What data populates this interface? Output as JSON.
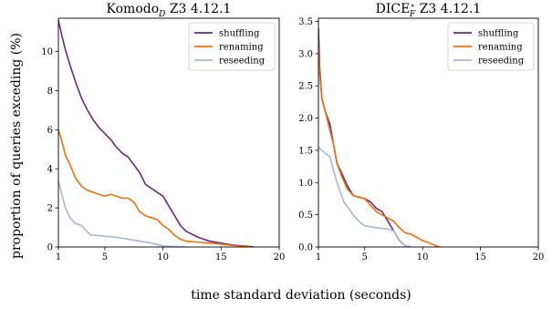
{
  "figure": {
    "ylabel": "proportion of queries exceding (%)",
    "xlabel": "time standard deviation (seconds)"
  },
  "chart_data": [
    {
      "type": "line",
      "title": "Komodo_D Z3 4.12.1",
      "title_main": "Komodo",
      "title_sub": "D",
      "title_rest": " Z3 4.12.1",
      "xlim": [
        1,
        20
      ],
      "ylim": [
        0,
        11.7
      ],
      "xticks": [
        1,
        5,
        10,
        15,
        20
      ],
      "yticks": [
        0,
        2,
        4,
        6,
        8,
        10
      ],
      "grid": false,
      "legend_position": "top-right",
      "series": [
        {
          "name": "shuffling",
          "color": "#6a2c7a",
          "points": [
            [
              1,
              11.6
            ],
            [
              1.3,
              10.8
            ],
            [
              1.6,
              10.1
            ],
            [
              2,
              9.3
            ],
            [
              2.5,
              8.4
            ],
            [
              3,
              7.6
            ],
            [
              3.5,
              7.0
            ],
            [
              4,
              6.5
            ],
            [
              4.5,
              6.1
            ],
            [
              5,
              5.8
            ],
            [
              5.5,
              5.5
            ],
            [
              6,
              5.1
            ],
            [
              6.5,
              4.8
            ],
            [
              7,
              4.6
            ],
            [
              7.5,
              4.2
            ],
            [
              8,
              3.8
            ],
            [
              8.5,
              3.2
            ],
            [
              9,
              3.0
            ],
            [
              9.5,
              2.8
            ],
            [
              10,
              2.6
            ],
            [
              10.5,
              2.1
            ],
            [
              11,
              1.6
            ],
            [
              11.5,
              1.1
            ],
            [
              12,
              0.8
            ],
            [
              13,
              0.5
            ],
            [
              14,
              0.3
            ],
            [
              15,
              0.2
            ],
            [
              16,
              0.1
            ],
            [
              17,
              0.05
            ],
            [
              17.8,
              0
            ]
          ]
        },
        {
          "name": "renaming",
          "color": "#f0700f",
          "points": [
            [
              1,
              6.0
            ],
            [
              1.3,
              5.4
            ],
            [
              1.6,
              4.7
            ],
            [
              2,
              4.2
            ],
            [
              2.5,
              3.5
            ],
            [
              3,
              3.1
            ],
            [
              3.5,
              2.9
            ],
            [
              4,
              2.8
            ],
            [
              4.5,
              2.7
            ],
            [
              5,
              2.6
            ],
            [
              5.5,
              2.7
            ],
            [
              6,
              2.6
            ],
            [
              6.5,
              2.5
            ],
            [
              7,
              2.5
            ],
            [
              7.5,
              2.3
            ],
            [
              8,
              1.8
            ],
            [
              8.5,
              1.6
            ],
            [
              9,
              1.5
            ],
            [
              9.5,
              1.4
            ],
            [
              10,
              1.1
            ],
            [
              10.5,
              0.9
            ],
            [
              11,
              0.6
            ],
            [
              11.5,
              0.4
            ],
            [
              12,
              0.3
            ],
            [
              13,
              0.25
            ],
            [
              14,
              0.2
            ],
            [
              15,
              0.15
            ],
            [
              16,
              0.08
            ],
            [
              17.5,
              0
            ]
          ]
        },
        {
          "name": "reseeding",
          "color": "#a4b7d6",
          "points": [
            [
              1,
              3.4
            ],
            [
              1.3,
              2.7
            ],
            [
              1.6,
              2.0
            ],
            [
              2,
              1.5
            ],
            [
              2.5,
              1.2
            ],
            [
              3,
              1.1
            ],
            [
              3.3,
              0.9
            ],
            [
              3.8,
              0.6
            ],
            [
              4.3,
              0.6
            ],
            [
              5,
              0.55
            ],
            [
              6,
              0.5
            ],
            [
              7,
              0.4
            ],
            [
              8,
              0.3
            ],
            [
              9,
              0.2
            ],
            [
              10,
              0.05
            ],
            [
              11,
              0.02
            ],
            [
              12,
              0
            ]
          ]
        }
      ]
    },
    {
      "type": "line",
      "title": "DICE*_F Z3 4.12.1",
      "title_main": "DICE",
      "title_sup": "⋆",
      "title_sub": "F",
      "title_rest": " Z3 4.12.1",
      "xlim": [
        1,
        20
      ],
      "ylim": [
        0,
        3.55
      ],
      "xticks": [
        1,
        5,
        10,
        15,
        20
      ],
      "yticks": [
        0.0,
        0.5,
        1.0,
        1.5,
        2.0,
        2.5,
        3.0,
        3.5
      ],
      "grid": false,
      "legend_position": "top-right",
      "series": [
        {
          "name": "shuffling",
          "color": "#6a2c7a",
          "points": [
            [
              1,
              3.4
            ],
            [
              1.1,
              2.8
            ],
            [
              1.3,
              2.3
            ],
            [
              1.6,
              2.1
            ],
            [
              2,
              1.9
            ],
            [
              2.3,
              1.6
            ],
            [
              2.6,
              1.3
            ],
            [
              3,
              1.15
            ],
            [
              3.5,
              0.95
            ],
            [
              4,
              0.8
            ],
            [
              5,
              0.75
            ],
            [
              5.5,
              0.7
            ],
            [
              6,
              0.6
            ],
            [
              6.5,
              0.55
            ],
            [
              7,
              0.4
            ],
            [
              7.5,
              0.25
            ],
            [
              8,
              0.1
            ],
            [
              8.5,
              0.02
            ],
            [
              9,
              0
            ]
          ]
        },
        {
          "name": "renaming",
          "color": "#f0700f",
          "points": [
            [
              1,
              3.1
            ],
            [
              1.1,
              2.7
            ],
            [
              1.3,
              2.3
            ],
            [
              1.6,
              2.1
            ],
            [
              2,
              1.8
            ],
            [
              2.3,
              1.6
            ],
            [
              2.6,
              1.3
            ],
            [
              3,
              1.1
            ],
            [
              3.5,
              0.9
            ],
            [
              4,
              0.8
            ],
            [
              5,
              0.75
            ],
            [
              5.5,
              0.65
            ],
            [
              6,
              0.55
            ],
            [
              6.5,
              0.5
            ],
            [
              7,
              0.45
            ],
            [
              7.5,
              0.4
            ],
            [
              8,
              0.3
            ],
            [
              8.5,
              0.22
            ],
            [
              9,
              0.2
            ],
            [
              10,
              0.1
            ],
            [
              10.5,
              0.07
            ],
            [
              11,
              0.03
            ],
            [
              11.5,
              0
            ]
          ]
        },
        {
          "name": "reseeding",
          "color": "#a4b7d6",
          "points": [
            [
              1,
              1.55
            ],
            [
              1.3,
              1.5
            ],
            [
              1.6,
              1.45
            ],
            [
              2,
              1.4
            ],
            [
              2.3,
              1.2
            ],
            [
              2.6,
              1.0
            ],
            [
              2.9,
              0.85
            ],
            [
              3.2,
              0.7
            ],
            [
              3.6,
              0.6
            ],
            [
              4,
              0.5
            ],
            [
              4.5,
              0.4
            ],
            [
              5,
              0.33
            ],
            [
              6,
              0.3
            ],
            [
              7,
              0.28
            ],
            [
              7.5,
              0.25
            ],
            [
              8,
              0.1
            ],
            [
              8.5,
              0.02
            ],
            [
              9,
              0
            ]
          ]
        }
      ]
    }
  ]
}
